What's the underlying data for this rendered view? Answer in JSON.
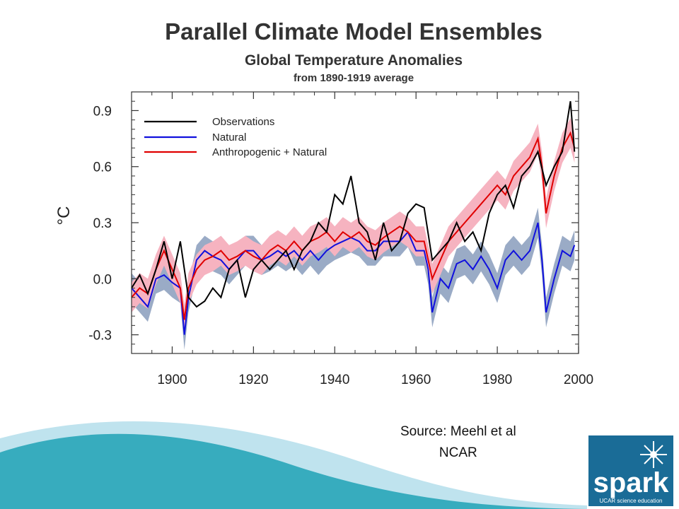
{
  "title": "Parallel Climate Model Ensembles",
  "subtitle": "Global Temperature Anomalies",
  "subtitle2": "from 1890-1919 average",
  "source_line1": "Source: Meehl et al",
  "source_line2": "NCAR",
  "logo": {
    "word": "spark",
    "tagline": "UCAR science education"
  },
  "colors": {
    "observations": "#000000",
    "natural": "#1010dd",
    "anthro": "#e00000",
    "natural_band": "#9aabc6",
    "anthro_band": "#f6b3c0",
    "wave_teal": "#1fa2b5",
    "wave_light": "#bfe3ee",
    "logo_bg": "#1a6c97"
  },
  "chart_data": {
    "type": "line",
    "xlabel": "",
    "ylabel": "°C",
    "xlim": [
      1890,
      2000
    ],
    "ylim": [
      -0.4,
      1.0
    ],
    "x_ticks": [
      1900,
      1920,
      1940,
      1960,
      1980,
      2000
    ],
    "y_ticks": [
      -0.3,
      0.0,
      0.3,
      0.6,
      0.9
    ],
    "y_tick_labels": [
      "-0.3",
      "0.0",
      "0.3",
      "0.6",
      "0.9"
    ],
    "legend_position": "top-left",
    "grid": false,
    "series": [
      {
        "name": "Observations",
        "x": [
          1890,
          1892,
          1894,
          1896,
          1898,
          1900,
          1902,
          1904,
          1906,
          1908,
          1910,
          1912,
          1914,
          1916,
          1918,
          1920,
          1922,
          1924,
          1926,
          1928,
          1930,
          1932,
          1934,
          1936,
          1938,
          1940,
          1942,
          1944,
          1946,
          1948,
          1950,
          1952,
          1954,
          1956,
          1958,
          1960,
          1962,
          1964,
          1966,
          1968,
          1970,
          1972,
          1974,
          1976,
          1978,
          1980,
          1982,
          1984,
          1986,
          1988,
          1990,
          1992,
          1994,
          1996,
          1998,
          1999
        ],
        "y": [
          -0.05,
          0.02,
          -0.08,
          0.05,
          0.2,
          0.0,
          0.2,
          -0.1,
          -0.15,
          -0.12,
          -0.05,
          -0.1,
          0.05,
          0.1,
          -0.1,
          0.05,
          0.1,
          0.05,
          0.1,
          0.15,
          0.05,
          0.15,
          0.2,
          0.3,
          0.25,
          0.45,
          0.4,
          0.55,
          0.3,
          0.25,
          0.1,
          0.3,
          0.15,
          0.2,
          0.35,
          0.4,
          0.38,
          0.1,
          0.15,
          0.2,
          0.3,
          0.2,
          0.25,
          0.15,
          0.35,
          0.45,
          0.5,
          0.38,
          0.55,
          0.6,
          0.68,
          0.5,
          0.6,
          0.68,
          0.95,
          0.68
        ]
      },
      {
        "name": "Natural",
        "x": [
          1890,
          1892,
          1894,
          1896,
          1898,
          1900,
          1902,
          1903,
          1904,
          1906,
          1908,
          1910,
          1912,
          1914,
          1916,
          1918,
          1920,
          1922,
          1924,
          1926,
          1928,
          1930,
          1932,
          1934,
          1936,
          1938,
          1940,
          1942,
          1944,
          1946,
          1948,
          1950,
          1952,
          1954,
          1956,
          1958,
          1960,
          1962,
          1963,
          1964,
          1966,
          1968,
          1970,
          1972,
          1974,
          1976,
          1978,
          1980,
          1982,
          1984,
          1986,
          1988,
          1990,
          1991,
          1992,
          1994,
          1996,
          1998,
          1999
        ],
        "y": [
          -0.05,
          -0.1,
          -0.15,
          0.0,
          0.02,
          -0.02,
          -0.05,
          -0.3,
          -0.1,
          0.1,
          0.15,
          0.12,
          0.1,
          0.05,
          0.1,
          0.15,
          0.15,
          0.1,
          0.12,
          0.15,
          0.12,
          0.15,
          0.1,
          0.15,
          0.1,
          0.15,
          0.18,
          0.2,
          0.22,
          0.2,
          0.15,
          0.15,
          0.2,
          0.2,
          0.2,
          0.25,
          0.15,
          0.15,
          0.05,
          -0.18,
          0.0,
          -0.05,
          0.08,
          0.1,
          0.05,
          0.12,
          0.05,
          -0.05,
          0.1,
          0.15,
          0.1,
          0.15,
          0.3,
          0.1,
          -0.18,
          0.0,
          0.15,
          0.12,
          0.18
        ]
      },
      {
        "name": "Anthropogenic + Natural",
        "x": [
          1890,
          1892,
          1894,
          1896,
          1898,
          1900,
          1902,
          1903,
          1904,
          1906,
          1908,
          1910,
          1912,
          1914,
          1916,
          1918,
          1920,
          1922,
          1924,
          1926,
          1928,
          1930,
          1932,
          1934,
          1936,
          1938,
          1940,
          1942,
          1944,
          1946,
          1948,
          1950,
          1952,
          1954,
          1956,
          1958,
          1960,
          1962,
          1964,
          1966,
          1968,
          1970,
          1972,
          1974,
          1976,
          1978,
          1980,
          1982,
          1984,
          1986,
          1988,
          1990,
          1991,
          1992,
          1994,
          1996,
          1998,
          1999
        ],
        "y": [
          -0.1,
          -0.05,
          -0.08,
          0.05,
          0.15,
          0.05,
          -0.05,
          -0.22,
          -0.05,
          0.05,
          0.1,
          0.12,
          0.15,
          0.1,
          0.12,
          0.15,
          0.12,
          0.1,
          0.15,
          0.18,
          0.15,
          0.2,
          0.15,
          0.2,
          0.22,
          0.25,
          0.2,
          0.25,
          0.22,
          0.25,
          0.2,
          0.18,
          0.22,
          0.25,
          0.28,
          0.25,
          0.2,
          0.2,
          0.0,
          0.1,
          0.2,
          0.25,
          0.3,
          0.35,
          0.4,
          0.45,
          0.5,
          0.45,
          0.55,
          0.6,
          0.65,
          0.75,
          0.6,
          0.35,
          0.55,
          0.7,
          0.78,
          0.7
        ]
      }
    ]
  }
}
